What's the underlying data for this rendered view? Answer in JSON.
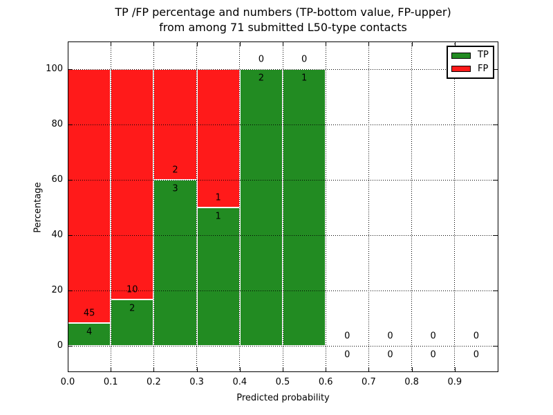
{
  "chart_data": {
    "type": "bar",
    "variant": "stacked-percentage-histogram",
    "title_lines": [
      "TP /FP percentage and numbers (TP-bottom value, FP-upper)",
      "from among 71 submitted L50-type contacts"
    ],
    "xlabel": "Predicted probability",
    "ylabel": "Percentage",
    "total_submitted": 71,
    "xlim": [
      0.0,
      1.0
    ],
    "ylim": [
      -10,
      110
    ],
    "x_tick_values": [
      0.0,
      0.1,
      0.2,
      0.3,
      0.4,
      0.5,
      0.6,
      0.7,
      0.8,
      0.9
    ],
    "x_tick_labels": [
      "0.0",
      "0.1",
      "0.2",
      "0.3",
      "0.4",
      "0.5",
      "0.6",
      "0.7",
      "0.8",
      "0.9"
    ],
    "y_tick_values": [
      0,
      20,
      40,
      60,
      80,
      100
    ],
    "y_tick_labels": [
      "0",
      "20",
      "40",
      "60",
      "80",
      "100"
    ],
    "grid": "dotted",
    "bin_width": 0.1,
    "bins": [
      {
        "x_start": 0.0,
        "x_end": 0.1,
        "tp_count": 4,
        "fp_count": 45,
        "tp_pct": 8.2,
        "fp_pct": 91.8
      },
      {
        "x_start": 0.1,
        "x_end": 0.2,
        "tp_count": 2,
        "fp_count": 10,
        "tp_pct": 16.7,
        "fp_pct": 83.3
      },
      {
        "x_start": 0.2,
        "x_end": 0.3,
        "tp_count": 3,
        "fp_count": 2,
        "tp_pct": 60.0,
        "fp_pct": 40.0
      },
      {
        "x_start": 0.3,
        "x_end": 0.4,
        "tp_count": 1,
        "fp_count": 1,
        "tp_pct": 50.0,
        "fp_pct": 50.0
      },
      {
        "x_start": 0.4,
        "x_end": 0.5,
        "tp_count": 2,
        "fp_count": 0,
        "tp_pct": 100.0,
        "fp_pct": 0.0
      },
      {
        "x_start": 0.5,
        "x_end": 0.6,
        "tp_count": 1,
        "fp_count": 0,
        "tp_pct": 100.0,
        "fp_pct": 0.0
      },
      {
        "x_start": 0.6,
        "x_end": 0.7,
        "tp_count": 0,
        "fp_count": 0,
        "tp_pct": 0.0,
        "fp_pct": 0.0
      },
      {
        "x_start": 0.7,
        "x_end": 0.8,
        "tp_count": 0,
        "fp_count": 0,
        "tp_pct": 0.0,
        "fp_pct": 0.0
      },
      {
        "x_start": 0.8,
        "x_end": 0.9,
        "tp_count": 0,
        "fp_count": 0,
        "tp_pct": 0.0,
        "fp_pct": 0.0
      },
      {
        "x_start": 0.9,
        "x_end": 1.0,
        "tp_count": 0,
        "fp_count": 0,
        "tp_pct": 0.0,
        "fp_pct": 0.0
      }
    ],
    "legend": {
      "position": "upper-right",
      "entries": [
        {
          "label": "TP",
          "color": "#228B22"
        },
        {
          "label": "FP",
          "color": "#FF1A1A"
        }
      ]
    },
    "colors": {
      "tp": "#228B22",
      "fp": "#FF1A1A",
      "grid": "#000000",
      "background": "#FFFFFF",
      "text": "#000000"
    }
  }
}
